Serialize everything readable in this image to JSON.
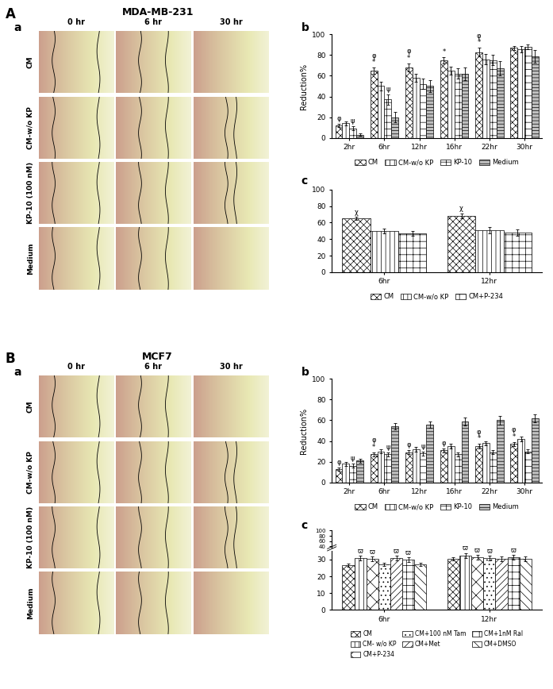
{
  "sections": [
    {
      "letter": "A",
      "title": "MDA-MB-231",
      "image_panel": "a",
      "columns": [
        "0 hr",
        "6 hr",
        "30 hr"
      ],
      "rows": [
        "CM",
        "CM-w/o KP",
        "KP-10 (100 nM)",
        "Medium"
      ]
    },
    {
      "letter": "B",
      "title": "MCF7",
      "image_panel": "a",
      "columns": [
        "0 hr",
        "6 hr",
        "30 hr"
      ],
      "rows": [
        "CM",
        "CM-w/o KP",
        "KP-10 (100 nM)",
        "Medium"
      ]
    }
  ],
  "chart_data": [
    {
      "type": "bar",
      "panel": "b",
      "y_label": "Reduction%",
      "categories": [
        "2hr",
        "6hr",
        "12hr",
        "16hr",
        "22hr",
        "30hr"
      ],
      "ylim": [
        0,
        100
      ],
      "yticks": [
        0,
        20,
        40,
        60,
        80,
        100
      ],
      "legend": "upper center",
      "series": [
        {
          "name": "CM",
          "color": "#ffffff",
          "values": [
            12,
            65,
            68,
            75,
            83,
            87
          ],
          "errors": [
            1.5,
            3,
            4,
            3,
            4,
            2
          ]
        },
        {
          "name": "CM-w/o KP",
          "color": "#ffffff",
          "values": [
            14,
            50,
            58,
            65,
            76,
            86
          ],
          "errors": [
            2,
            4,
            4,
            4,
            5,
            3
          ]
        },
        {
          "name": "KP-10",
          "color": "#ffffff",
          "values": [
            9,
            37,
            52,
            62,
            75,
            88
          ],
          "errors": [
            2,
            5,
            5,
            5,
            5,
            2
          ]
        },
        {
          "name": "Medium",
          "color": "#bfbfbf",
          "values": [
            3,
            20,
            50,
            62,
            67,
            79
          ],
          "errors": [
            1,
            5,
            6,
            6,
            7,
            6
          ]
        }
      ],
      "annotations": [
        {
          "category": "2hr",
          "series": "CM",
          "text": "φ"
        },
        {
          "category": "2hr",
          "series": "KP-10",
          "text": "ψ"
        },
        {
          "category": "6hr",
          "series": "CM",
          "text": "*"
        },
        {
          "category": "6hr",
          "series": "CM",
          "text": "φ"
        },
        {
          "category": "6hr",
          "series": "KP-10",
          "text": "ψ"
        },
        {
          "category": "12hr",
          "series": "CM",
          "text": "*"
        },
        {
          "category": "12hr",
          "series": "CM",
          "text": "φ"
        },
        {
          "category": "16hr",
          "series": "CM",
          "text": "*"
        },
        {
          "category": "22hr",
          "series": "CM",
          "text": "*"
        },
        {
          "category": "22hr",
          "series": "CM",
          "text": "φ"
        }
      ]
    },
    {
      "type": "bar",
      "panel": "c",
      "categories": [
        "6hr",
        "12hr"
      ],
      "ylim": [
        0,
        100
      ],
      "yticks": [
        0,
        20,
        40,
        60,
        80,
        100
      ],
      "legend": "upper center",
      "series": [
        {
          "name": "CM",
          "color": "#ffffff",
          "values": [
            65,
            68
          ],
          "errors": [
            2,
            3
          ]
        },
        {
          "name": "CM-w/o KP",
          "color": "#ffffff",
          "values": [
            50,
            51
          ],
          "errors": [
            3,
            4
          ]
        },
        {
          "name": "CM+P-234",
          "color": "#ffffff",
          "values": [
            47,
            48
          ],
          "errors": [
            3,
            4
          ]
        }
      ],
      "annotations": [
        {
          "category": "6hr",
          "series": "CM",
          "text": "χ"
        },
        {
          "category": "12hr",
          "series": "CM",
          "text": "χ"
        }
      ]
    },
    {
      "type": "bar",
      "panel": "b",
      "y_label": "Reduction%",
      "categories": [
        "2hr",
        "6hr",
        "12hr",
        "16hr",
        "22hr",
        "30hr"
      ],
      "ylim": [
        0,
        100
      ],
      "yticks": [
        0,
        20,
        40,
        60,
        80,
        100
      ],
      "legend": "upper center",
      "series": [
        {
          "name": "CM",
          "color": "#ffffff",
          "values": [
            13,
            27,
            29,
            31,
            35,
            37
          ],
          "errors": [
            1.5,
            2,
            2,
            2,
            2,
            2
          ]
        },
        {
          "name": "CM-w/o KP",
          "color": "#ffffff",
          "values": [
            18,
            30,
            32,
            35,
            38,
            42
          ],
          "errors": [
            2,
            2,
            2,
            2,
            2,
            2
          ]
        },
        {
          "name": "KP-10",
          "color": "#ffffff",
          "values": [
            16,
            27,
            28,
            27,
            29,
            30
          ],
          "errors": [
            2,
            2,
            2,
            2,
            2,
            2
          ]
        },
        {
          "name": "Medium",
          "color": "#bfbfbf",
          "values": [
            21,
            54,
            56,
            59,
            60,
            62
          ],
          "errors": [
            2,
            3,
            3,
            4,
            4,
            4
          ]
        }
      ],
      "annotations": [
        {
          "category": "2hr",
          "series": "CM",
          "text": "φ"
        },
        {
          "category": "2hr",
          "series": "KP-10",
          "text": "ψ"
        },
        {
          "category": "6hr",
          "series": "CM",
          "text": "*"
        },
        {
          "category": "6hr",
          "series": "CM",
          "text": "φ"
        },
        {
          "category": "6hr",
          "series": "KP-10",
          "text": "ψ"
        },
        {
          "category": "12hr",
          "series": "CM",
          "text": "φ"
        },
        {
          "category": "12hr",
          "series": "KP-10",
          "text": "ψ"
        },
        {
          "category": "16hr",
          "series": "CM",
          "text": "φ"
        },
        {
          "category": "22hr",
          "series": "CM",
          "text": "*"
        },
        {
          "category": "22hr",
          "series": "CM",
          "text": "φ"
        },
        {
          "category": "30hr",
          "series": "CM",
          "text": "*"
        },
        {
          "category": "30hr",
          "series": "CM",
          "text": "φ"
        }
      ]
    },
    {
      "type": "bar",
      "panel": "c",
      "categories": [
        "6hr",
        "12hr"
      ],
      "ylim": [
        0,
        35
      ],
      "yticks": [
        0,
        10,
        20,
        30
      ],
      "upper_axis": {
        "ylim": [
          35,
          100
        ],
        "yticks": [
          40,
          60,
          80,
          100
        ]
      },
      "legend": "upper center",
      "series": [
        {
          "name": "CM",
          "color": "#ffffff",
          "values": [
            26.5,
            30.5
          ],
          "errors": [
            1,
            1
          ]
        },
        {
          "name": "CM- w/o KP",
          "color": "#ffffff",
          "values": [
            31,
            32.5
          ],
          "errors": [
            1.5,
            1.5
          ]
        },
        {
          "name": "CM+P-234",
          "color": "#ffffff",
          "values": [
            30.5,
            31.5
          ],
          "errors": [
            1.5,
            1.5
          ]
        },
        {
          "name": "CM+100 nM Tam",
          "color": "#ffffff",
          "values": [
            27,
            31
          ],
          "errors": [
            1,
            1.5
          ]
        },
        {
          "name": "CM+Met",
          "color": "#ffffff",
          "values": [
            31,
            30.5
          ],
          "errors": [
            1.5,
            1.5
          ]
        },
        {
          "name": "CM+1nM Ral",
          "color": "#ffffff",
          "values": [
            30,
            31.5
          ],
          "errors": [
            1.5,
            1.5
          ]
        },
        {
          "name": "CM+DMSO",
          "color": "#ffffff",
          "values": [
            27,
            30.5
          ],
          "errors": [
            1,
            1.5
          ]
        }
      ],
      "annotations": [
        {
          "category": "6hr",
          "series": "CM- w/o KP",
          "text": "ϖ"
        },
        {
          "category": "6hr",
          "series": "CM+P-234",
          "text": "ϖ"
        },
        {
          "category": "6hr",
          "series": "CM+Met",
          "text": "ϖ"
        },
        {
          "category": "6hr",
          "series": "CM+1nM Ral",
          "text": "ϖ"
        },
        {
          "category": "12hr",
          "series": "CM- w/o KP",
          "text": "ϖ"
        },
        {
          "category": "12hr",
          "series": "CM+P-234",
          "text": "ϖ"
        },
        {
          "category": "12hr",
          "series": "CM+100 nM Tam",
          "text": "ϖ"
        },
        {
          "category": "12hr",
          "series": "CM+1nM Ral",
          "text": "ϖ"
        }
      ]
    }
  ]
}
